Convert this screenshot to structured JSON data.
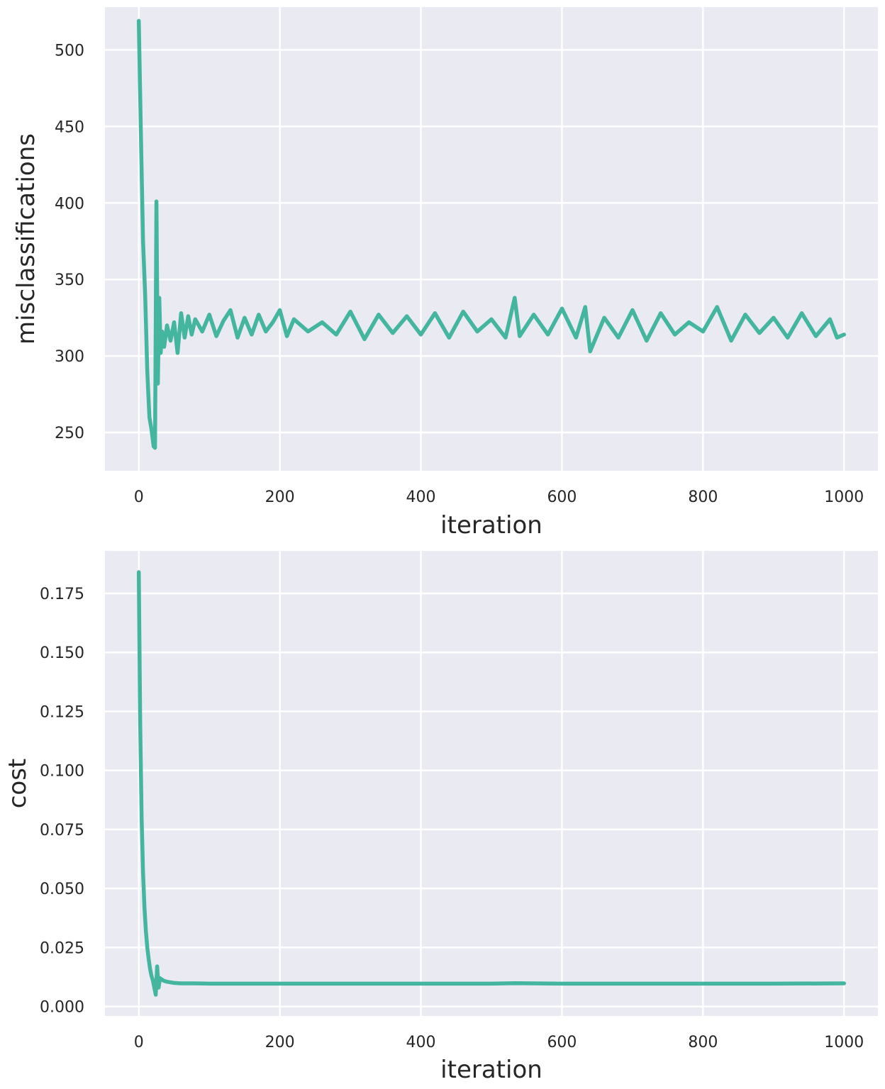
{
  "theme": {
    "background": "#ffffff",
    "plot_background": "#eaeaf2",
    "grid_color": "#ffffff",
    "line_color": "#44b59f",
    "text_color": "#262626"
  },
  "chart_data": [
    {
      "type": "line",
      "title": "",
      "xlabel": "iteration",
      "ylabel": "misclassifications",
      "xlim": [
        -48,
        1048
      ],
      "ylim": [
        225,
        528
      ],
      "xticks": [
        0,
        200,
        400,
        600,
        800,
        1000
      ],
      "xtick_labels": [
        "0",
        "200",
        "400",
        "600",
        "800",
        "1000"
      ],
      "yticks": [
        250,
        300,
        350,
        400,
        450,
        500
      ],
      "ytick_labels": [
        "250",
        "300",
        "350",
        "400",
        "450",
        "500"
      ],
      "grid": true,
      "legend": "none",
      "series": [
        {
          "color": "#44b59f",
          "x": [
            0,
            3,
            6,
            9,
            12,
            15,
            18,
            21,
            23,
            25,
            27,
            29,
            31,
            33,
            36,
            40,
            45,
            50,
            55,
            60,
            65,
            70,
            75,
            80,
            90,
            100,
            110,
            120,
            130,
            140,
            150,
            160,
            170,
            180,
            190,
            200,
            210,
            220,
            240,
            260,
            280,
            300,
            320,
            340,
            360,
            380,
            400,
            420,
            440,
            460,
            480,
            500,
            520,
            533,
            540,
            560,
            580,
            600,
            620,
            633,
            640,
            660,
            680,
            700,
            720,
            740,
            760,
            780,
            800,
            820,
            840,
            860,
            880,
            900,
            920,
            940,
            960,
            980,
            990,
            1000
          ],
          "y": [
            519,
            445,
            375,
            340,
            290,
            260,
            252,
            241,
            240,
            401,
            282,
            338,
            302,
            316,
            306,
            320,
            310,
            322,
            302,
            328,
            312,
            326,
            314,
            324,
            316,
            327,
            313,
            323,
            330,
            312,
            325,
            314,
            327,
            316,
            322,
            330,
            313,
            324,
            316,
            322,
            314,
            329,
            311,
            327,
            315,
            326,
            314,
            328,
            312,
            329,
            316,
            324,
            312,
            338,
            313,
            327,
            314,
            331,
            312,
            332,
            303,
            325,
            312,
            330,
            310,
            328,
            314,
            322,
            316,
            332,
            310,
            327,
            315,
            325,
            312,
            328,
            313,
            324,
            312,
            314
          ]
        }
      ]
    },
    {
      "type": "line",
      "title": "",
      "xlabel": "iteration",
      "ylabel": "cost",
      "xlim": [
        -48,
        1048
      ],
      "ylim": [
        -0.004,
        0.193
      ],
      "xticks": [
        0,
        200,
        400,
        600,
        800,
        1000
      ],
      "xtick_labels": [
        "0",
        "200",
        "400",
        "600",
        "800",
        "1000"
      ],
      "yticks": [
        0,
        0.025,
        0.05,
        0.075,
        0.1,
        0.125,
        0.15,
        0.175
      ],
      "ytick_labels": [
        "0.000",
        "0.025",
        "0.050",
        "0.075",
        "0.100",
        "0.125",
        "0.150",
        "0.175"
      ],
      "grid": true,
      "legend": "none",
      "series": [
        {
          "color": "#44b59f",
          "x": [
            0,
            2,
            4,
            6,
            8,
            10,
            12,
            14,
            16,
            18,
            20,
            22,
            24,
            26,
            28,
            30,
            35,
            40,
            50,
            60,
            80,
            100,
            150,
            200,
            300,
            400,
            500,
            533,
            600,
            700,
            800,
            900,
            1000
          ],
          "y": [
            0.184,
            0.12,
            0.08,
            0.057,
            0.042,
            0.032,
            0.025,
            0.02,
            0.016,
            0.013,
            0.011,
            0.008,
            0.005,
            0.017,
            0.008,
            0.012,
            0.011,
            0.0105,
            0.01,
            0.0098,
            0.0098,
            0.0097,
            0.0097,
            0.0097,
            0.0097,
            0.0097,
            0.0097,
            0.0099,
            0.0097,
            0.0097,
            0.0097,
            0.0097,
            0.0098
          ]
        }
      ]
    }
  ]
}
